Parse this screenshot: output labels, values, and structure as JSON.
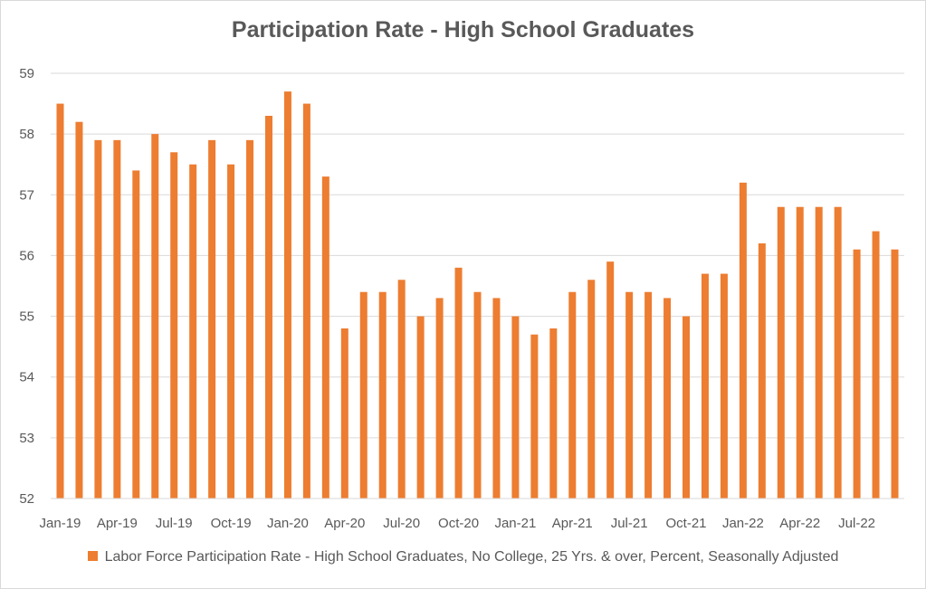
{
  "chart_data": {
    "type": "bar",
    "title": "Participation Rate - High School Graduates",
    "xlabel": "",
    "ylabel": "",
    "ylim": [
      52,
      59
    ],
    "yticks": [
      52,
      53,
      54,
      55,
      56,
      57,
      58,
      59
    ],
    "grid": true,
    "legend_position": "bottom",
    "bar_color": "#ED7D31",
    "categories": [
      "Jan-19",
      "Feb-19",
      "Mar-19",
      "Apr-19",
      "May-19",
      "Jun-19",
      "Jul-19",
      "Aug-19",
      "Sep-19",
      "Oct-19",
      "Nov-19",
      "Dec-19",
      "Jan-20",
      "Feb-20",
      "Mar-20",
      "Apr-20",
      "May-20",
      "Jun-20",
      "Jul-20",
      "Aug-20",
      "Sep-20",
      "Oct-20",
      "Nov-20",
      "Dec-20",
      "Jan-21",
      "Feb-21",
      "Mar-21",
      "Apr-21",
      "May-21",
      "Jun-21",
      "Jul-21",
      "Aug-21",
      "Sep-21",
      "Oct-21",
      "Nov-21",
      "Dec-21",
      "Jan-22",
      "Feb-22",
      "Mar-22",
      "Apr-22",
      "May-22",
      "Jun-22",
      "Jul-22",
      "Aug-22",
      "Sep-22"
    ],
    "tick_labels": [
      "Jan-19",
      "Apr-19",
      "Jul-19",
      "Oct-19",
      "Jan-20",
      "Apr-20",
      "Jul-20",
      "Oct-20",
      "Jan-21",
      "Apr-21",
      "Jul-21",
      "Oct-21",
      "Jan-22",
      "Apr-22",
      "Jul-22"
    ],
    "series": [
      {
        "name": "Labor Force Participation Rate - High School Graduates, No College, 25 Yrs. & over, Percent, Seasonally Adjusted",
        "values": [
          58.5,
          58.2,
          57.9,
          57.9,
          57.4,
          58.0,
          57.7,
          57.5,
          57.9,
          57.5,
          57.9,
          58.3,
          58.7,
          58.5,
          57.3,
          54.8,
          55.4,
          55.4,
          55.6,
          55.0,
          55.3,
          55.8,
          55.4,
          55.3,
          55.0,
          54.7,
          54.8,
          55.4,
          55.6,
          55.9,
          55.4,
          55.4,
          55.3,
          55.0,
          55.7,
          55.7,
          57.2,
          56.2,
          56.8,
          56.8,
          56.8,
          56.8,
          56.1,
          56.4,
          56.1
        ]
      }
    ]
  }
}
